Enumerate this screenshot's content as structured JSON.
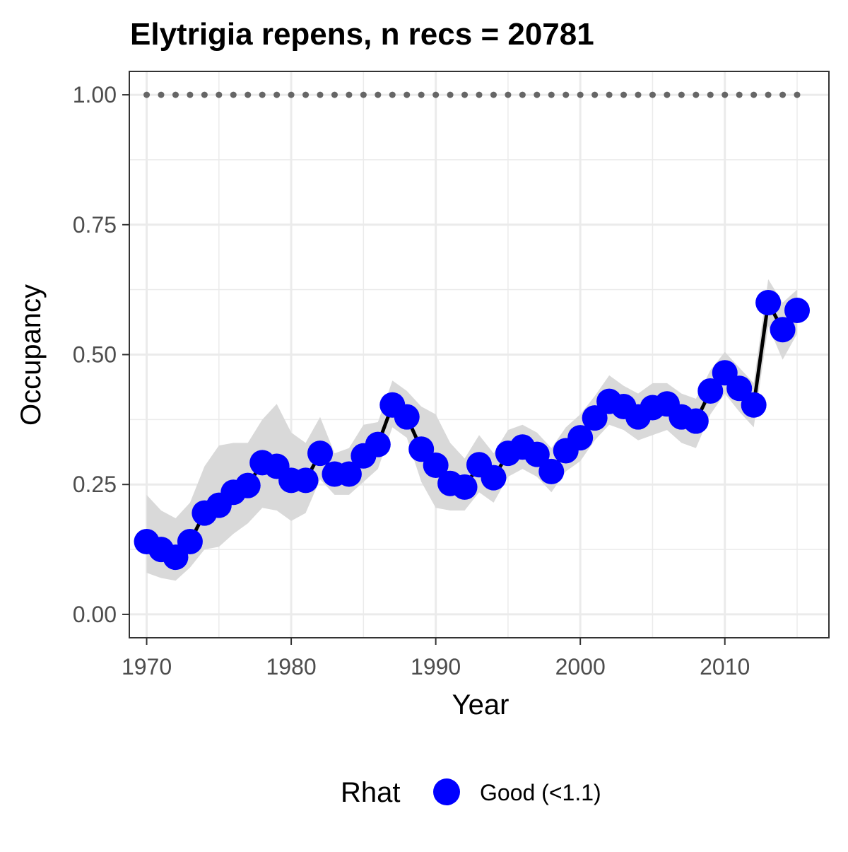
{
  "chart_data": {
    "type": "line",
    "title": "Elytrigia repens, n recs = 20781",
    "xlabel": "Year",
    "ylabel": "Occupancy",
    "xlim": [
      1968.8,
      2017.2
    ],
    "ylim": [
      -0.045,
      1.045
    ],
    "x_ticks": [
      1970,
      1980,
      1990,
      2000,
      2010
    ],
    "x_tick_labels": [
      "1970",
      "1980",
      "1990",
      "2000",
      "2010"
    ],
    "y_ticks": [
      0,
      0.25,
      0.5,
      0.75,
      1.0
    ],
    "y_tick_labels": [
      "0.00",
      "0.25",
      "0.50",
      "0.75",
      "1.00"
    ],
    "grid": true,
    "legend": {
      "title": "Rhat",
      "placement": "bottom",
      "entries": [
        {
          "label": "Good (<1.1)",
          "color": "#0000ff"
        }
      ]
    },
    "colors": {
      "points": "#0000ff",
      "line": "#000000",
      "ribbon": "#d9d9d9",
      "reference": "#666666",
      "grid": "#ebebeb",
      "panel_border": "#333333",
      "tick_text": "#4d4d4d"
    },
    "reference_line": {
      "y": 1.0,
      "x_range": [
        1970,
        2015
      ],
      "style": "dotted"
    },
    "series": [
      {
        "x": [
          1970,
          1971,
          1972,
          1973,
          1974,
          1975,
          1976,
          1977,
          1978,
          1979,
          1980,
          1981,
          1982,
          1983,
          1984,
          1985,
          1986,
          1987,
          1988,
          1989,
          1990,
          1991,
          1992,
          1993,
          1994,
          1995,
          1996,
          1997,
          1998,
          1999,
          2000,
          2001,
          2002,
          2003,
          2004,
          2005,
          2006,
          2007,
          2008,
          2009,
          2010,
          2011,
          2012,
          2013,
          2014,
          2015
        ],
        "y": [
          0.14,
          0.125,
          0.11,
          0.14,
          0.195,
          0.21,
          0.235,
          0.248,
          0.292,
          0.285,
          0.258,
          0.258,
          0.31,
          0.27,
          0.27,
          0.305,
          0.327,
          0.403,
          0.38,
          0.318,
          0.287,
          0.252,
          0.245,
          0.288,
          0.263,
          0.31,
          0.322,
          0.308,
          0.275,
          0.315,
          0.34,
          0.378,
          0.41,
          0.4,
          0.38,
          0.398,
          0.405,
          0.38,
          0.372,
          0.43,
          0.465,
          0.435,
          0.403,
          0.6,
          0.548,
          0.585
        ],
        "lower": [
          0.08,
          0.07,
          0.065,
          0.09,
          0.125,
          0.13,
          0.155,
          0.175,
          0.205,
          0.2,
          0.18,
          0.195,
          0.26,
          0.23,
          0.23,
          0.255,
          0.28,
          0.36,
          0.34,
          0.255,
          0.205,
          0.2,
          0.2,
          0.235,
          0.215,
          0.265,
          0.28,
          0.265,
          0.235,
          0.275,
          0.295,
          0.335,
          0.365,
          0.355,
          0.335,
          0.345,
          0.355,
          0.33,
          0.32,
          0.385,
          0.425,
          0.39,
          0.36,
          0.555,
          0.49,
          0.54
        ],
        "upper": [
          0.23,
          0.2,
          0.185,
          0.215,
          0.285,
          0.325,
          0.33,
          0.33,
          0.375,
          0.405,
          0.35,
          0.33,
          0.38,
          0.31,
          0.32,
          0.365,
          0.37,
          0.45,
          0.43,
          0.4,
          0.385,
          0.33,
          0.3,
          0.345,
          0.31,
          0.355,
          0.365,
          0.35,
          0.32,
          0.36,
          0.385,
          0.42,
          0.46,
          0.44,
          0.425,
          0.445,
          0.445,
          0.425,
          0.415,
          0.47,
          0.505,
          0.475,
          0.445,
          0.645,
          0.6,
          0.625
        ]
      }
    ]
  }
}
